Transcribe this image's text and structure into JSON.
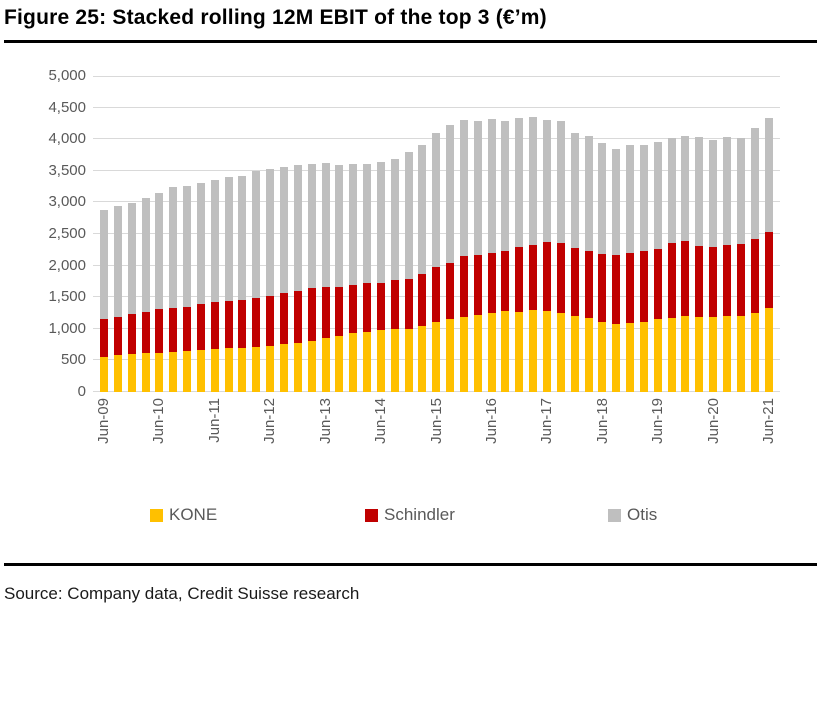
{
  "page": {
    "title": "Figure 25: Stacked rolling 12M EBIT of the top 3 (€’m)",
    "source_line": "Source: Company data, Credit Suisse research"
  },
  "chart_data": {
    "type": "bar",
    "stacked": true,
    "title": "Figure 25: Stacked rolling 12M EBIT of the top 3 (€’m)",
    "unit": "EUR millions",
    "xlabel": "",
    "ylabel": "",
    "ylim": [
      0,
      5000
    ],
    "y_tick_step": 500,
    "y_tick_labels": [
      "0",
      "500",
      "1,000",
      "1,500",
      "2,000",
      "2,500",
      "3,000",
      "3,500",
      "4,000",
      "4,500",
      "5,000"
    ],
    "x_tick_labels": [
      "Jun-09",
      "Jun-10",
      "Jun-11",
      "Jun-12",
      "Jun-13",
      "Jun-14",
      "Jun-15",
      "Jun-16",
      "Jun-17",
      "Jun-18",
      "Jun-19",
      "Jun-20",
      "Jun-21"
    ],
    "grid": true,
    "gridline_color": "#d9d9d9",
    "axis_text_color": "#595959",
    "legend_position": "bottom",
    "categories": [
      "Jun-09",
      "Sep-09",
      "Dec-09",
      "Mar-10",
      "Jun-10",
      "Sep-10",
      "Dec-10",
      "Mar-11",
      "Jun-11",
      "Sep-11",
      "Dec-11",
      "Mar-12",
      "Jun-12",
      "Sep-12",
      "Dec-12",
      "Mar-13",
      "Jun-13",
      "Sep-13",
      "Dec-13",
      "Mar-14",
      "Jun-14",
      "Sep-14",
      "Dec-14",
      "Mar-15",
      "Jun-15",
      "Sep-15",
      "Dec-15",
      "Mar-16",
      "Jun-16",
      "Sep-16",
      "Dec-16",
      "Mar-17",
      "Jun-17",
      "Sep-17",
      "Dec-17",
      "Mar-18",
      "Jun-18",
      "Sep-18",
      "Dec-18",
      "Mar-19",
      "Jun-19",
      "Sep-19",
      "Dec-19",
      "Mar-20",
      "Jun-20",
      "Sep-20",
      "Dec-20",
      "Mar-21",
      "Jun-21"
    ],
    "series": [
      {
        "name": "KONE",
        "color": "#FFC000",
        "values": [
          555,
          585,
          600,
          615,
          625,
          640,
          650,
          670,
          675,
          690,
          700,
          720,
          735,
          755,
          775,
          815,
          860,
          885,
          935,
          955,
          975,
          990,
          1000,
          1045,
          1110,
          1150,
          1190,
          1220,
          1255,
          1285,
          1270,
          1300,
          1285,
          1255,
          1195,
          1170,
          1100,
          1080,
          1085,
          1100,
          1150,
          1165,
          1205,
          1185,
          1190,
          1200,
          1210,
          1250,
          1335
        ]
      },
      {
        "name": "Schindler",
        "color": "#C00000",
        "values": [
          595,
          605,
          630,
          655,
          685,
          690,
          690,
          730,
          755,
          755,
          755,
          770,
          785,
          805,
          825,
          825,
          795,
          780,
          760,
          765,
          755,
          780,
          790,
          825,
          870,
          890,
          960,
          950,
          940,
          945,
          1020,
          1030,
          1085,
          1105,
          1090,
          1065,
          1080,
          1085,
          1110,
          1130,
          1110,
          1185,
          1180,
          1130,
          1110,
          1125,
          1130,
          1175,
          1195
        ]
      },
      {
        "name": "Otis",
        "color": "#BFBFBF",
        "values": [
          1730,
          1755,
          1755,
          1795,
          1835,
          1910,
          1925,
          1900,
          1925,
          1950,
          1965,
          2000,
          2010,
          2005,
          1985,
          1965,
          1965,
          1935,
          1920,
          1895,
          1910,
          1910,
          2015,
          2045,
          2115,
          2185,
          2160,
          2125,
          2120,
          2065,
          2040,
          2025,
          1940,
          1935,
          1820,
          1815,
          1755,
          1680,
          1710,
          1675,
          1700,
          1665,
          1665,
          1725,
          1690,
          1715,
          1685,
          1750,
          1800
        ]
      }
    ]
  }
}
